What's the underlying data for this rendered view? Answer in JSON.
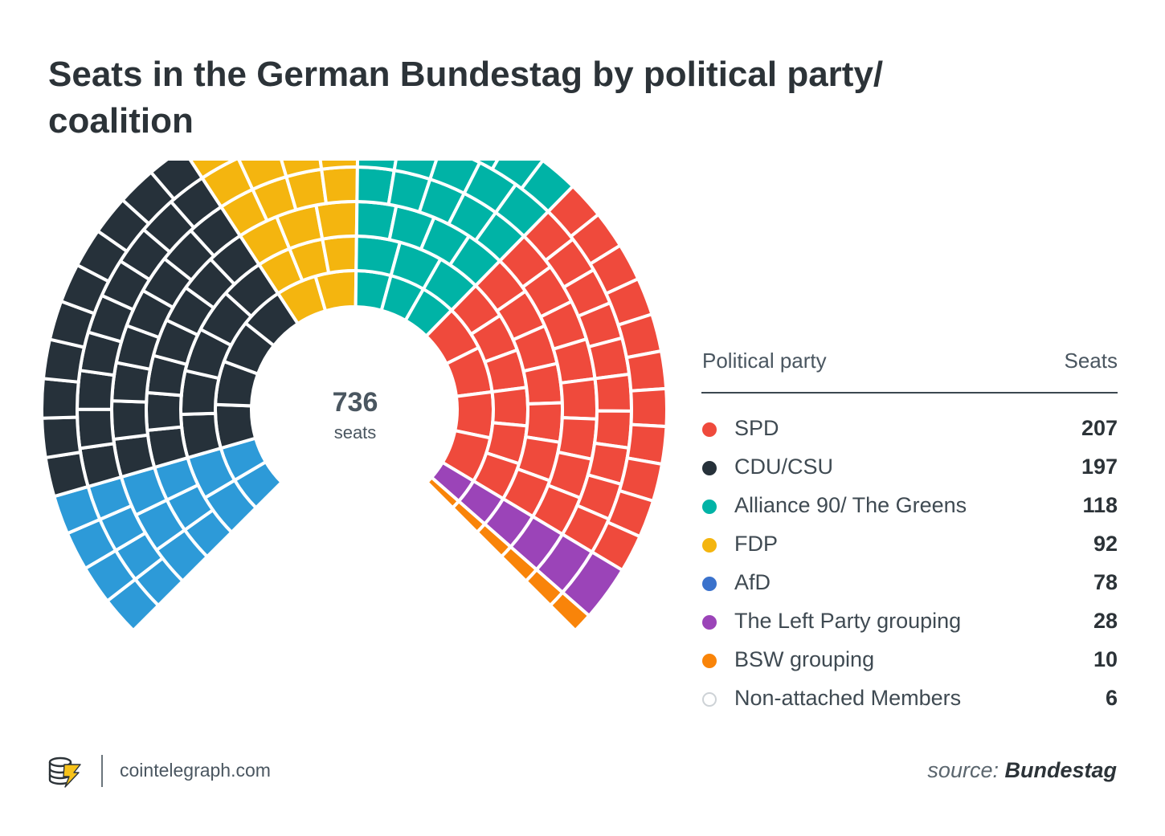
{
  "title": "Seats in the German Bundestag by political party/ coalition",
  "center": {
    "total": "736",
    "unit": "seats"
  },
  "legend": {
    "party_header": "Political party",
    "seats_header": "Seats"
  },
  "chart_data": {
    "type": "pie",
    "variant": "parliament-arc",
    "title": "Seats in the German Bundestag by political party/ coalition",
    "total_seats": 736,
    "arc_order_from_left_end": [
      "AfD",
      "CDU/CSU",
      "FDP",
      "Alliance 90/ The Greens",
      "SPD",
      "The Left Party grouping",
      "BSW grouping"
    ],
    "series": [
      {
        "name": "SPD",
        "value": 207,
        "color": "#ef4a3c"
      },
      {
        "name": "CDU/CSU",
        "value": 197,
        "color": "#26313a"
      },
      {
        "name": "Alliance 90/ The Greens",
        "value": 118,
        "color": "#00b3a6"
      },
      {
        "name": "FDP",
        "value": 92,
        "color": "#f4b50f"
      },
      {
        "name": "AfD",
        "value": 78,
        "color": "#2d9ad8",
        "legend_color": "#3a72cc"
      },
      {
        "name": "The Left Party grouping",
        "value": 28,
        "color": "#9b44b8"
      },
      {
        "name": "BSW grouping",
        "value": 10,
        "color": "#f98409"
      },
      {
        "name": "Non-attached Members",
        "value": 6,
        "color": "#ffffff",
        "hollow": true
      }
    ]
  },
  "footer": {
    "site": "cointelegraph.com",
    "source_prefix": "source:",
    "source_name": "Bundestag"
  }
}
